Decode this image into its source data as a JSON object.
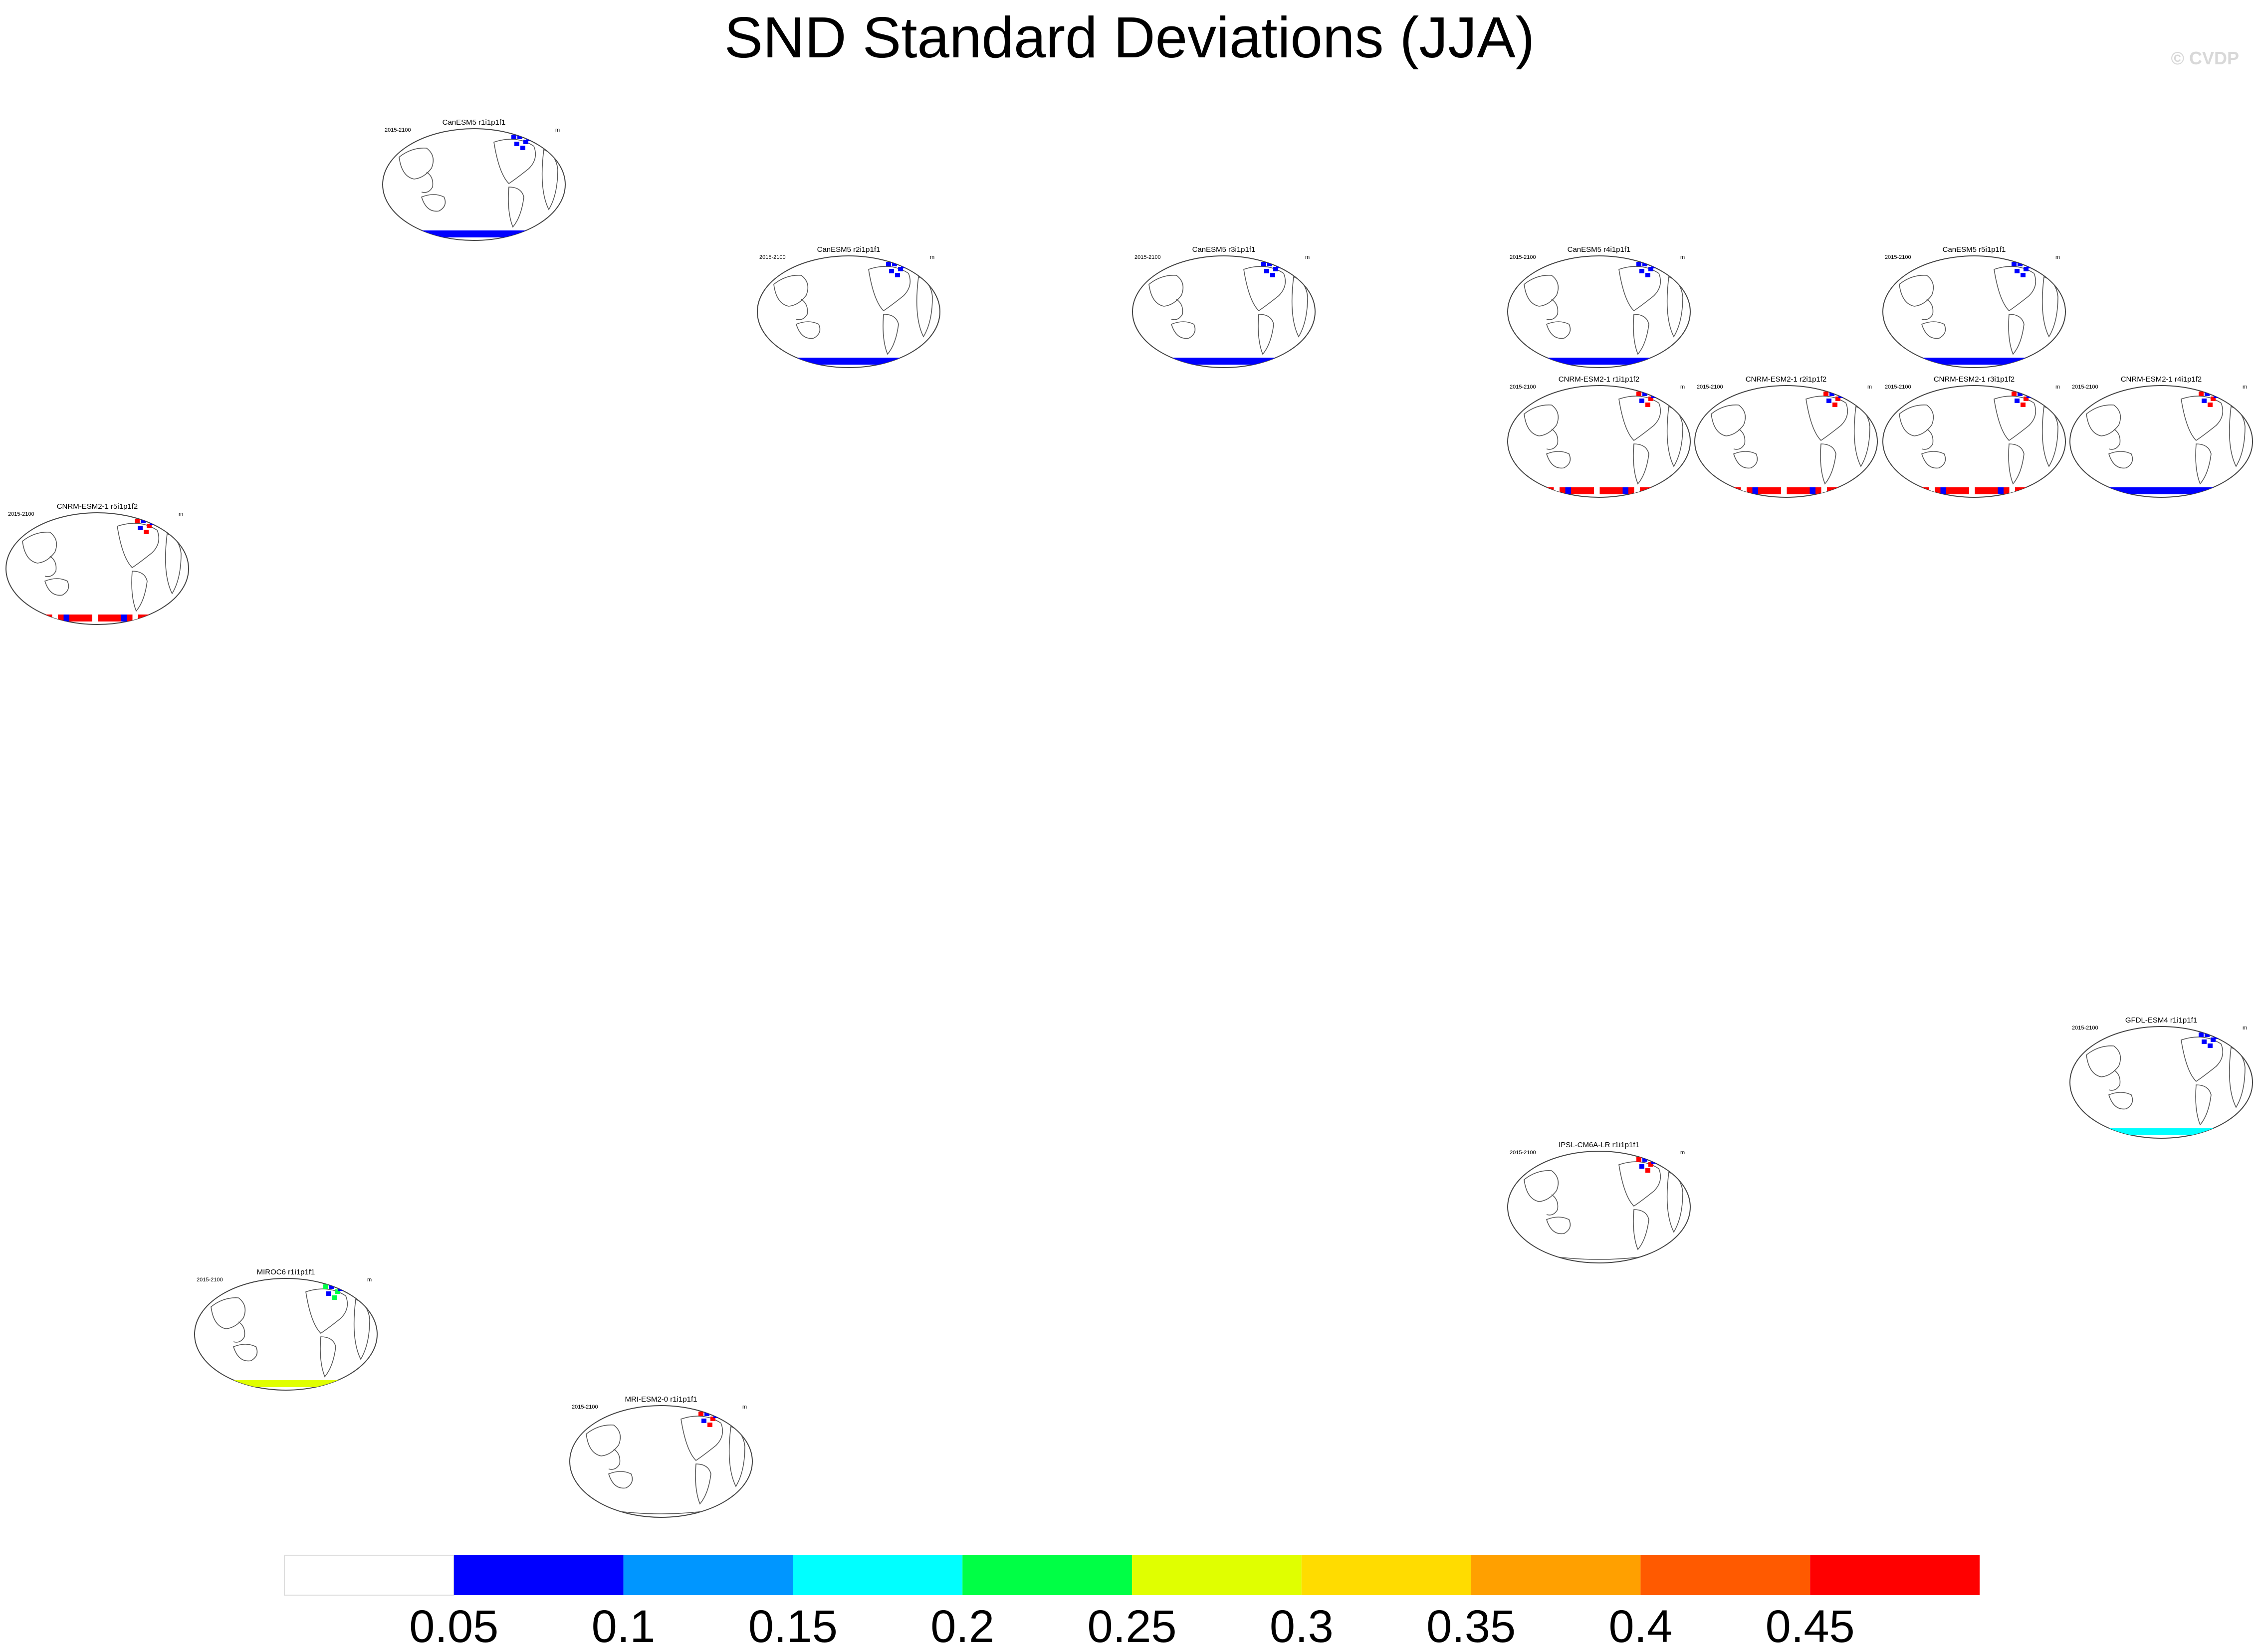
{
  "page": {
    "title": "SND Standard Deviations (JJA)",
    "credit": "© CVDP"
  },
  "chart_data": {
    "type": "heatmap",
    "title": "SND Standard Deviations (JJA)",
    "variable": "SND",
    "season": "JJA",
    "statistic": "standard deviation",
    "colorbar": {
      "levels": [
        0.05,
        0.1,
        0.15,
        0.2,
        0.25,
        0.3,
        0.35,
        0.4,
        0.45
      ],
      "tick_labels": [
        "0.05",
        "0.1",
        "0.15",
        "0.2",
        "0.25",
        "0.3",
        "0.35",
        "0.4",
        "0.45"
      ],
      "colors": [
        "#ffffff",
        "#0000ff",
        "#0096ff",
        "#00ffff",
        "#00ff45",
        "#e0ff00",
        "#ffdc00",
        "#ffa000",
        "#ff5a00",
        "#ff0000"
      ]
    },
    "panels": [
      {
        "title": "CanESM5 r1i1p1f1",
        "period": "2015-2100",
        "units": "m",
        "south_polar_band": "0.05-0.1",
        "north_max": "0.05-0.1"
      },
      {
        "title": "CanESM5 r2i1p1f1",
        "period": "2015-2100",
        "units": "m",
        "south_polar_band": "0.05-0.1",
        "north_max": "0.05-0.1"
      },
      {
        "title": "CanESM5 r3i1p1f1",
        "period": "2015-2100",
        "units": "m",
        "south_polar_band": "0.05-0.1",
        "north_max": "0.05-0.1"
      },
      {
        "title": "CanESM5 r4i1p1f1",
        "period": "2015-2100",
        "units": "m",
        "south_polar_band": "0.05-0.1",
        "north_max": "0.05-0.1"
      },
      {
        "title": "CanESM5 r5i1p1f1",
        "period": "2015-2100",
        "units": "m",
        "south_polar_band": "0.05-0.1",
        "north_max": "0.05-0.1"
      },
      {
        "title": "CNRM-ESM2-1 r1i1p1f2",
        "period": "2015-2100",
        "units": "m",
        "south_polar_band": ">0.45",
        "north_max": ">0.45"
      },
      {
        "title": "CNRM-ESM2-1 r2i1p1f2",
        "period": "2015-2100",
        "units": "m",
        "south_polar_band": ">0.45",
        "north_max": ">0.45"
      },
      {
        "title": "CNRM-ESM2-1 r3i1p1f2",
        "period": "2015-2100",
        "units": "m",
        "south_polar_band": ">0.45",
        "north_max": ">0.45"
      },
      {
        "title": "CNRM-ESM2-1 r4i1p1f2",
        "period": "2015-2100",
        "units": "m",
        "south_polar_band": "0.05-0.1",
        "north_max": ">0.45"
      },
      {
        "title": "CNRM-ESM2-1 r5i1p1f2",
        "period": "2015-2100",
        "units": "m",
        "south_polar_band": ">0.45",
        "north_max": ">0.45"
      },
      {
        "title": "GFDL-ESM4 r1i1p1f1",
        "period": "2015-2100",
        "units": "m",
        "south_polar_band": "0.15-0.2",
        "north_max": "0.05-0.1"
      },
      {
        "title": "IPSL-CM6A-LR r1i1p1f1",
        "period": "2015-2100",
        "units": "m",
        "south_polar_band": "none",
        "north_max": ">0.45"
      },
      {
        "title": "MIROC6 r1i1p1f1",
        "period": "2015-2100",
        "units": "m",
        "south_polar_band": "0.25-0.3",
        "north_max": "0.2-0.25"
      },
      {
        "title": "MRI-ESM2-0 r1i1p1f1",
        "period": "2015-2100",
        "units": "m",
        "south_polar_band": "none",
        "north_max": ">0.45"
      }
    ]
  }
}
